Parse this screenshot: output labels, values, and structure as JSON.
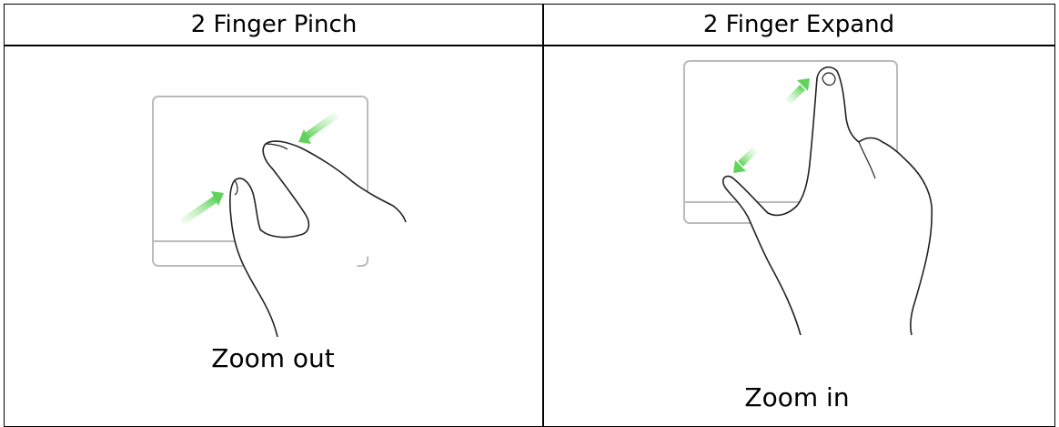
{
  "table": {
    "headers": [
      "2 Finger Pinch",
      "2 Finger Expand"
    ],
    "rows": [
      [
        "Zoom out",
        "Zoom in"
      ]
    ]
  }
}
